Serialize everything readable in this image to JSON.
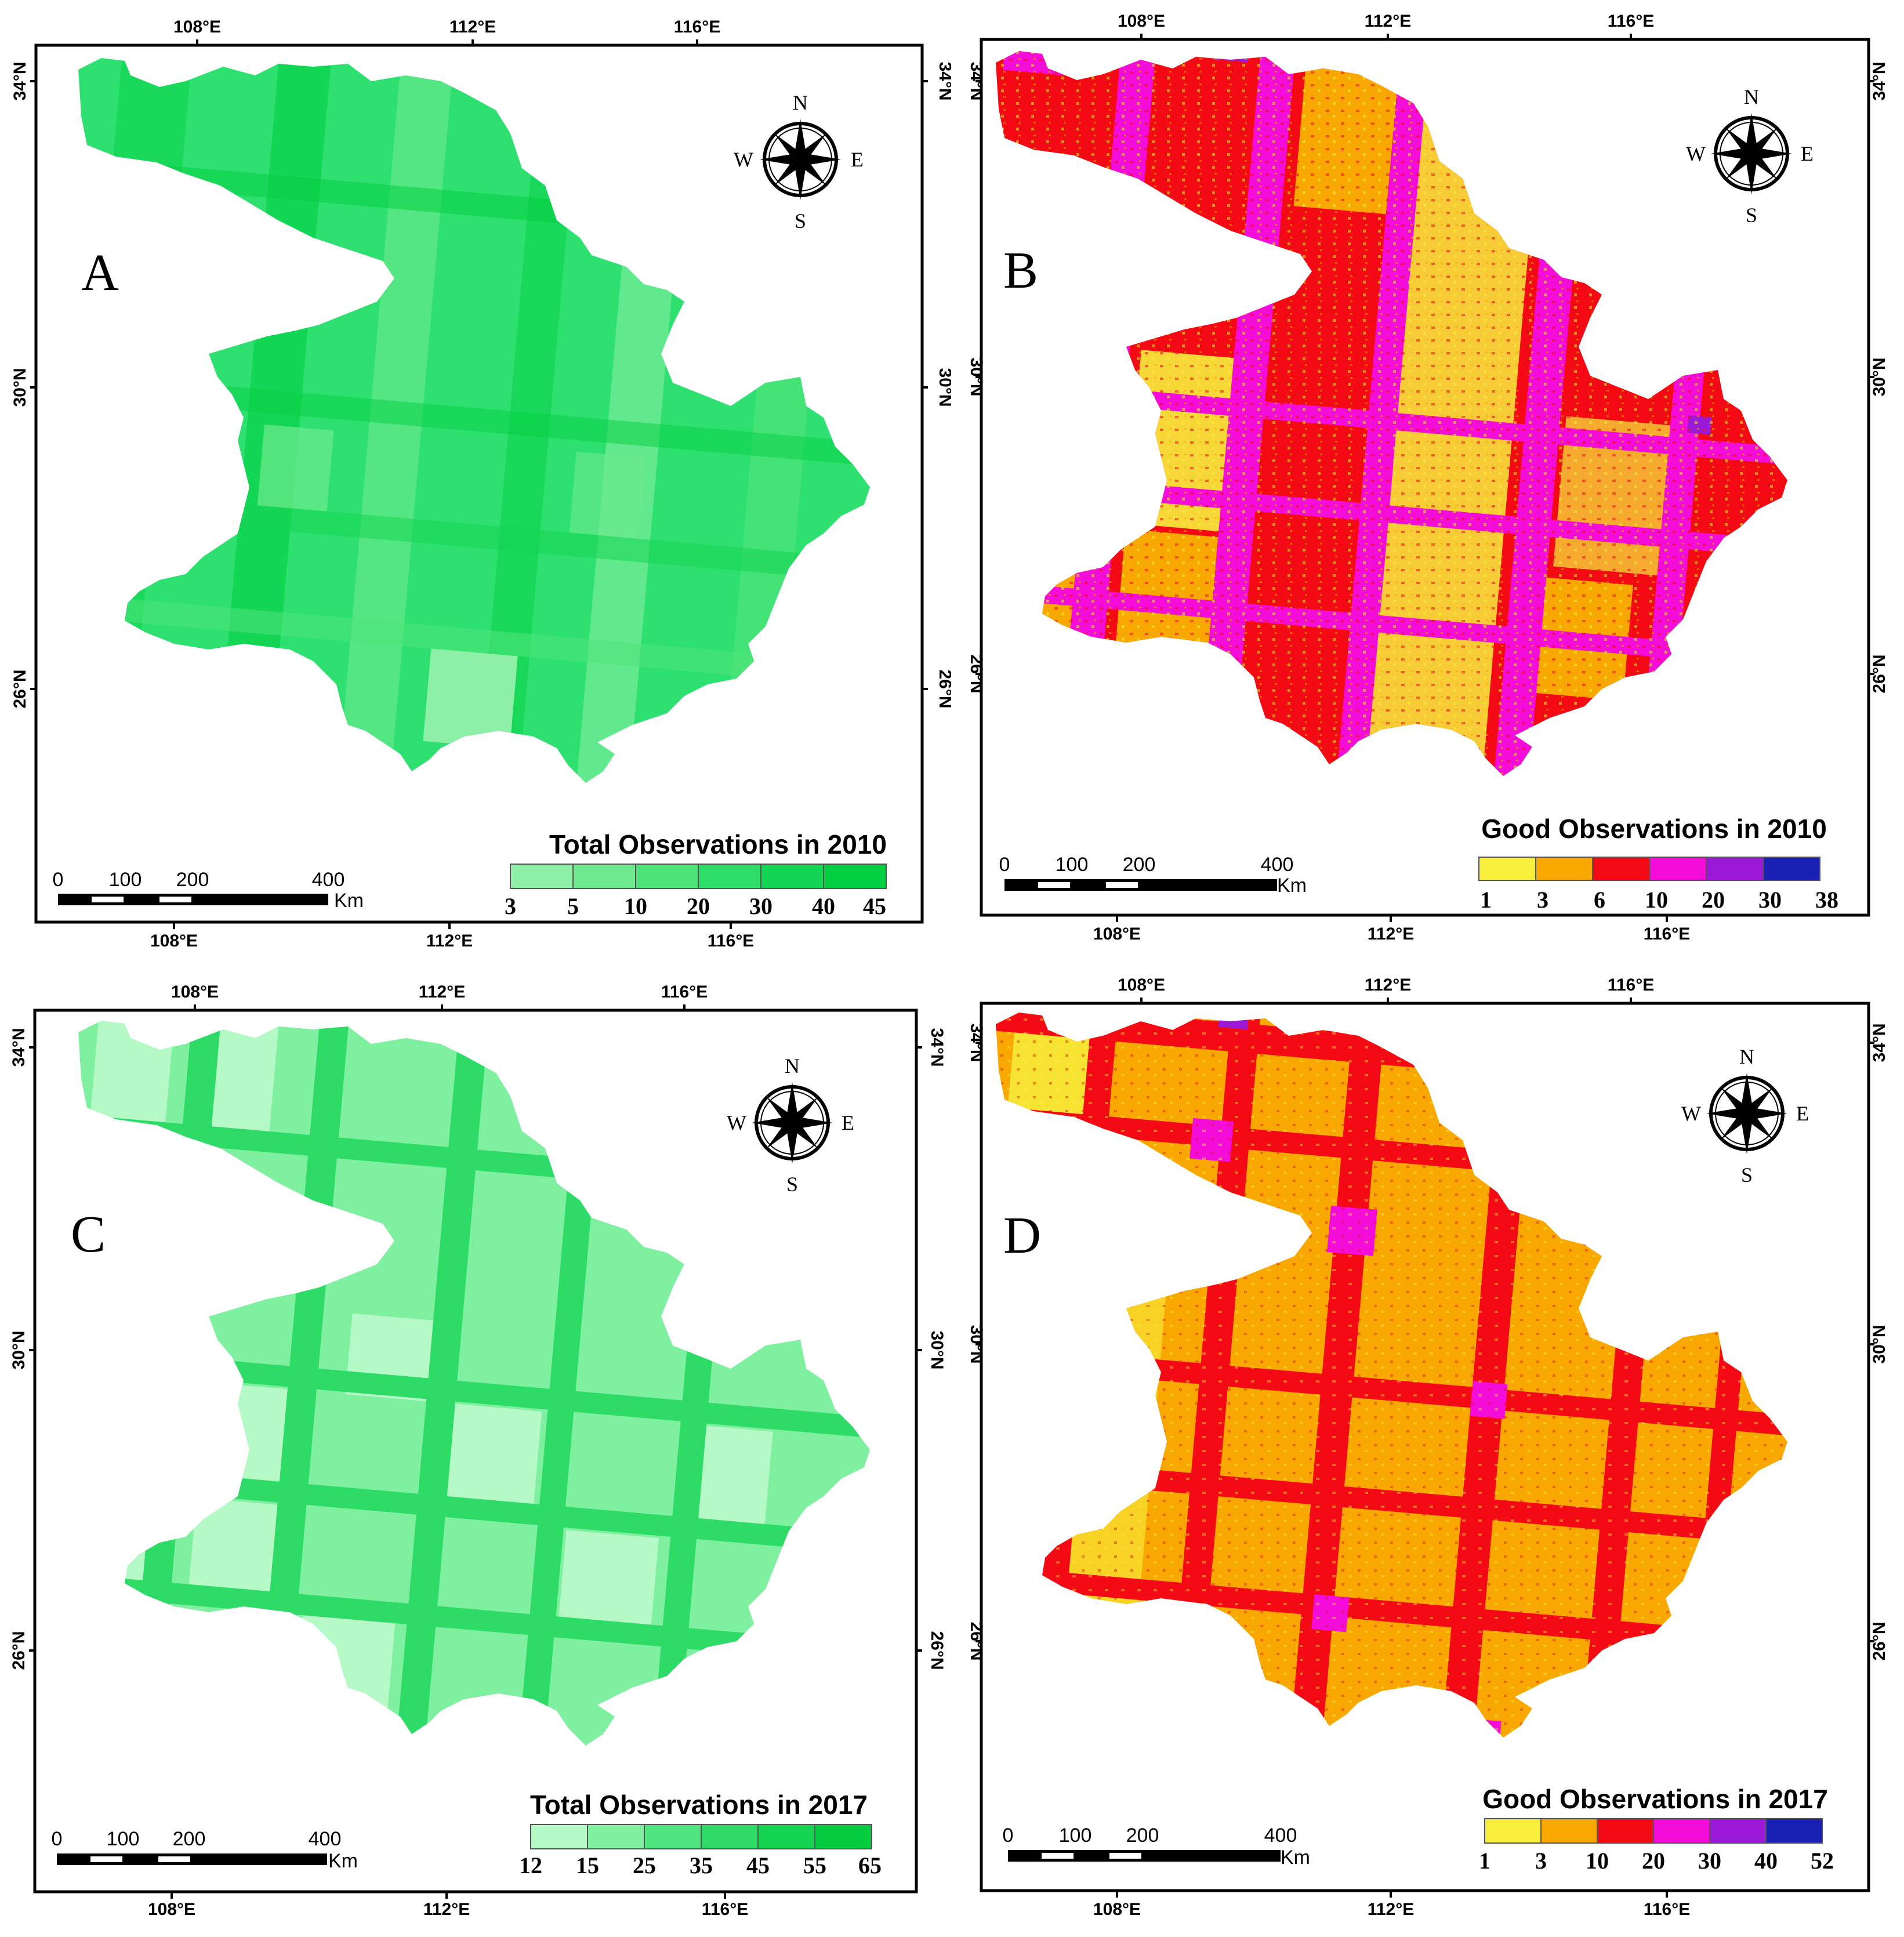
{
  "panels": [
    {
      "id": "A",
      "letter": "A",
      "legend_title": "Total Observations in 2010",
      "legend_ticks": [
        "3",
        "5",
        "10",
        "20",
        "30",
        "40",
        "45"
      ],
      "legend_colors": [
        "#8ef0a6",
        "#6ee98e",
        "#4fe47a",
        "#2edd68",
        "#15d654",
        "#04cf42"
      ],
      "top_lon": [
        "108°E",
        "112°E",
        "116°E"
      ],
      "bottom_lon": [
        "108°E",
        "112°E",
        "116°E"
      ],
      "left_lat": [
        "34°N",
        "30°N",
        "26°N"
      ],
      "right_lat": [
        "34°N",
        "30°N",
        "26°N"
      ],
      "scale_nums": [
        "0",
        "100",
        "200",
        "400"
      ],
      "scale_unit": "Km",
      "compass": {
        "n": "N",
        "s": "S",
        "e": "E",
        "w": "W"
      }
    },
    {
      "id": "B",
      "letter": "B",
      "legend_title": "Good Observations in 2010",
      "legend_ticks": [
        "1",
        "3",
        "6",
        "10",
        "20",
        "30",
        "38"
      ],
      "legend_colors": [
        "#f8ee3c",
        "#f8a800",
        "#f40a14",
        "#f40cd8",
        "#9a1ad8",
        "#1a20b4"
      ],
      "top_lon": [
        "108°E",
        "112°E",
        "116°E"
      ],
      "bottom_lon": [
        "108°E",
        "112°E",
        "116°E"
      ],
      "left_lat": [
        "34°N",
        "30°N",
        "26°N"
      ],
      "right_lat": [
        "34°N",
        "30°N",
        "26°N"
      ],
      "scale_nums": [
        "0",
        "100",
        "200",
        "400"
      ],
      "scale_unit": "Km",
      "compass": {
        "n": "N",
        "s": "S",
        "e": "E",
        "w": "W"
      }
    },
    {
      "id": "C",
      "letter": "C",
      "legend_title": "Total Observations in 2017",
      "legend_ticks": [
        "12",
        "15",
        "25",
        "35",
        "45",
        "55",
        "65"
      ],
      "legend_colors": [
        "#b4f9c6",
        "#7ff0a0",
        "#4fe47e",
        "#2edb66",
        "#15d452",
        "#04cc40"
      ],
      "top_lon": [
        "108°E",
        "112°E",
        "116°E"
      ],
      "bottom_lon": [
        "108°E",
        "112°E",
        "116°E"
      ],
      "left_lat": [
        "34°N",
        "30°N",
        "26°N"
      ],
      "right_lat": [
        "34°N",
        "30°N",
        "26°N"
      ],
      "scale_nums": [
        "0",
        "100",
        "200",
        "400"
      ],
      "scale_unit": "Km",
      "compass": {
        "n": "N",
        "s": "S",
        "e": "E",
        "w": "W"
      }
    },
    {
      "id": "D",
      "letter": "D",
      "legend_title": "Good Observations in 2017",
      "legend_ticks": [
        "1",
        "3",
        "10",
        "20",
        "30",
        "40",
        "52"
      ],
      "legend_colors": [
        "#f8ee3c",
        "#f8a800",
        "#f40a14",
        "#f40cd8",
        "#9a1ad8",
        "#1a20b4"
      ],
      "top_lon": [
        "108°E",
        "112°E",
        "116°E"
      ],
      "bottom_lon": [
        "108°E",
        "112°E",
        "116°E"
      ],
      "left_lat": [
        "34°N",
        "30°N",
        "26°N"
      ],
      "right_lat": [
        "34°N",
        "30°N",
        "26°N"
      ],
      "scale_nums": [
        "0",
        "100",
        "200",
        "400"
      ],
      "scale_unit": "Km",
      "compass": {
        "n": "N",
        "s": "S",
        "e": "E",
        "w": "W"
      }
    }
  ]
}
